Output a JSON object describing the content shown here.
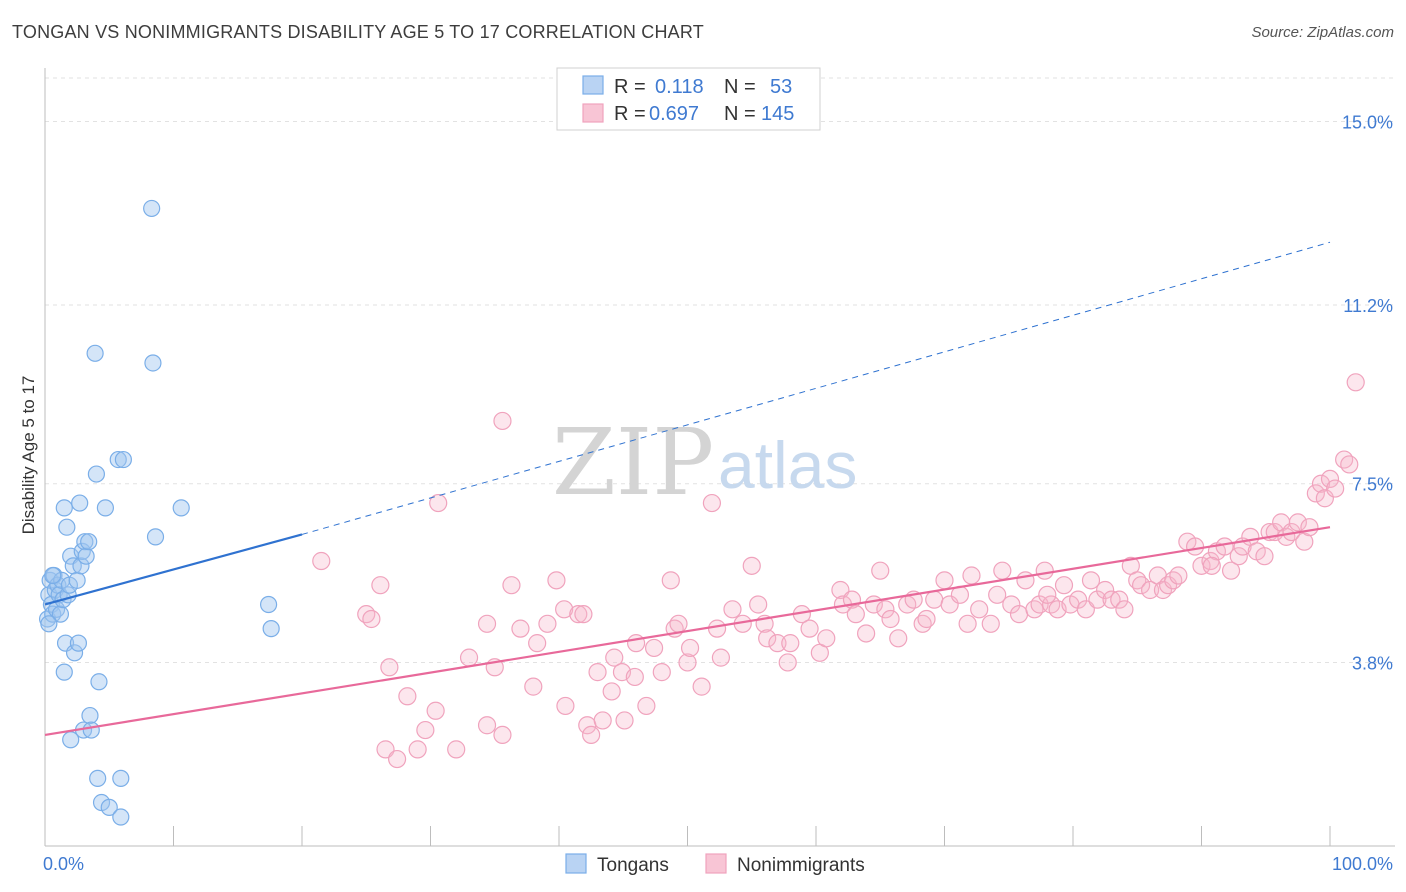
{
  "title": "TONGAN VS NONIMMIGRANTS DISABILITY AGE 5 TO 17 CORRELATION CHART",
  "source": "Source: ZipAtlas.com",
  "watermark": {
    "zip": "ZIP",
    "atlas": "atlas"
  },
  "legend": {
    "rows": [
      {
        "r_label": "R =",
        "r_value": "0.118",
        "n_label": "N =",
        "n_value": "53"
      },
      {
        "r_label": "R =",
        "r_value": "0.697",
        "n_label": "N =",
        "n_value": "145"
      }
    ]
  },
  "colors": {
    "tongans": "#7aaee8",
    "nonimmigrants": "#f0a3bd",
    "tongan_line": "#2f72d0",
    "nonimm_line": "#e8699a",
    "tick_text": "#3f7ad1"
  },
  "chart_data": {
    "type": "scatter",
    "title": "TONGAN VS NONIMMIGRANTS DISABILITY AGE 5 TO 17 CORRELATION CHART",
    "xlabel": "",
    "ylabel": "Disability Age 5 to 17",
    "xlim": [
      0,
      100
    ],
    "ylim": [
      0,
      15.9
    ],
    "x_tick_labels": [
      "0.0%",
      "100.0%"
    ],
    "y_ticks": [
      3.8,
      7.5,
      11.2,
      15.0
    ],
    "y_tick_labels": [
      "3.8%",
      "7.5%",
      "11.2%",
      "15.0%"
    ],
    "grid": true,
    "legend_position": "bottom-center",
    "series": [
      {
        "name": "Tongans",
        "points": [
          [
            0.2,
            4.7
          ],
          [
            0.3,
            5.2
          ],
          [
            0.4,
            5.5
          ],
          [
            0.5,
            5.0
          ],
          [
            0.6,
            4.8
          ],
          [
            0.7,
            5.6
          ],
          [
            0.8,
            5.3
          ],
          [
            0.9,
            4.9
          ],
          [
            1.0,
            5.4
          ],
          [
            1.1,
            5.2
          ],
          [
            1.2,
            4.8
          ],
          [
            1.3,
            5.5
          ],
          [
            1.4,
            5.1
          ],
          [
            1.5,
            3.6
          ],
          [
            1.5,
            7.0
          ],
          [
            1.6,
            4.2
          ],
          [
            1.7,
            6.6
          ],
          [
            1.8,
            5.2
          ],
          [
            1.9,
            5.4
          ],
          [
            2.0,
            6.0
          ],
          [
            2.0,
            2.2
          ],
          [
            2.2,
            5.8
          ],
          [
            2.3,
            4.0
          ],
          [
            2.5,
            5.5
          ],
          [
            2.6,
            4.2
          ],
          [
            2.7,
            7.1
          ],
          [
            2.8,
            5.8
          ],
          [
            2.9,
            6.1
          ],
          [
            3.0,
            2.4
          ],
          [
            3.1,
            6.3
          ],
          [
            3.2,
            6.0
          ],
          [
            3.4,
            6.3
          ],
          [
            3.5,
            2.7
          ],
          [
            3.6,
            2.4
          ],
          [
            3.9,
            10.2
          ],
          [
            4.0,
            7.7
          ],
          [
            4.1,
            1.4
          ],
          [
            4.2,
            3.4
          ],
          [
            4.4,
            0.9
          ],
          [
            4.7,
            7.0
          ],
          [
            5.0,
            0.8
          ],
          [
            5.7,
            8.0
          ],
          [
            5.9,
            0.6
          ],
          [
            5.9,
            1.4
          ],
          [
            6.1,
            8.0
          ],
          [
            8.3,
            13.2
          ],
          [
            8.4,
            10.0
          ],
          [
            8.6,
            6.4
          ],
          [
            10.6,
            7.0
          ],
          [
            17.4,
            5.0
          ],
          [
            17.6,
            4.5
          ],
          [
            0.3,
            4.6
          ],
          [
            0.6,
            5.6
          ]
        ]
      },
      {
        "name": "Nonimmigrants",
        "points": [
          [
            21.5,
            5.9
          ],
          [
            25.0,
            4.8
          ],
          [
            25.4,
            4.7
          ],
          [
            26.1,
            5.4
          ],
          [
            26.5,
            2.0
          ],
          [
            26.8,
            3.7
          ],
          [
            27.4,
            1.8
          ],
          [
            28.2,
            3.1
          ],
          [
            29.0,
            2.0
          ],
          [
            29.6,
            2.4
          ],
          [
            30.4,
            2.8
          ],
          [
            30.6,
            7.1
          ],
          [
            32.0,
            2.0
          ],
          [
            33.0,
            3.9
          ],
          [
            34.4,
            4.6
          ],
          [
            34.4,
            2.5
          ],
          [
            35.0,
            3.7
          ],
          [
            35.6,
            2.3
          ],
          [
            35.6,
            8.8
          ],
          [
            36.3,
            5.4
          ],
          [
            37.0,
            4.5
          ],
          [
            38.0,
            3.3
          ],
          [
            38.3,
            4.2
          ],
          [
            39.1,
            4.6
          ],
          [
            39.8,
            5.5
          ],
          [
            40.4,
            4.9
          ],
          [
            40.5,
            2.9
          ],
          [
            41.5,
            4.8
          ],
          [
            41.9,
            4.8
          ],
          [
            42.2,
            2.5
          ],
          [
            42.5,
            2.3
          ],
          [
            43.0,
            3.6
          ],
          [
            43.4,
            2.6
          ],
          [
            44.1,
            3.2
          ],
          [
            44.3,
            3.9
          ],
          [
            44.9,
            3.6
          ],
          [
            45.1,
            2.6
          ],
          [
            45.9,
            3.5
          ],
          [
            46.0,
            4.2
          ],
          [
            46.8,
            2.9
          ],
          [
            47.4,
            4.1
          ],
          [
            48.0,
            3.6
          ],
          [
            48.7,
            5.5
          ],
          [
            49.0,
            4.5
          ],
          [
            49.3,
            4.6
          ],
          [
            50.0,
            3.8
          ],
          [
            50.2,
            4.1
          ],
          [
            51.1,
            3.3
          ],
          [
            51.9,
            7.1
          ],
          [
            52.3,
            4.5
          ],
          [
            52.6,
            3.9
          ],
          [
            53.5,
            4.9
          ],
          [
            54.3,
            4.6
          ],
          [
            55.0,
            5.8
          ],
          [
            55.5,
            5.0
          ],
          [
            56.0,
            4.6
          ],
          [
            56.2,
            4.3
          ],
          [
            57.0,
            4.2
          ],
          [
            57.8,
            3.8
          ],
          [
            58.0,
            4.2
          ],
          [
            58.9,
            4.8
          ],
          [
            59.5,
            4.5
          ],
          [
            60.3,
            4.0
          ],
          [
            60.8,
            4.3
          ],
          [
            61.9,
            5.3
          ],
          [
            62.1,
            5.0
          ],
          [
            62.8,
            5.1
          ],
          [
            63.1,
            4.8
          ],
          [
            63.9,
            4.4
          ],
          [
            64.5,
            5.0
          ],
          [
            65.4,
            4.9
          ],
          [
            65.8,
            4.7
          ],
          [
            66.4,
            4.3
          ],
          [
            67.1,
            5.0
          ],
          [
            67.6,
            5.1
          ],
          [
            68.3,
            4.6
          ],
          [
            68.6,
            4.7
          ],
          [
            69.2,
            5.1
          ],
          [
            70.0,
            5.5
          ],
          [
            70.4,
            5.0
          ],
          [
            71.2,
            5.2
          ],
          [
            71.8,
            4.6
          ],
          [
            72.1,
            5.6
          ],
          [
            72.7,
            4.9
          ],
          [
            73.6,
            4.6
          ],
          [
            74.1,
            5.2
          ],
          [
            74.5,
            5.7
          ],
          [
            75.2,
            5.0
          ],
          [
            75.8,
            4.8
          ],
          [
            76.3,
            5.5
          ],
          [
            77.0,
            4.9
          ],
          [
            77.4,
            5.0
          ],
          [
            77.8,
            5.7
          ],
          [
            78.3,
            5.0
          ],
          [
            78.8,
            4.9
          ],
          [
            79.3,
            5.4
          ],
          [
            79.8,
            5.0
          ],
          [
            80.4,
            5.1
          ],
          [
            81.0,
            4.9
          ],
          [
            81.4,
            5.5
          ],
          [
            81.9,
            5.1
          ],
          [
            82.5,
            5.3
          ],
          [
            83.0,
            5.1
          ],
          [
            83.6,
            5.1
          ],
          [
            84.0,
            4.9
          ],
          [
            84.5,
            5.8
          ],
          [
            85.0,
            5.5
          ],
          [
            85.3,
            5.4
          ],
          [
            86.0,
            5.3
          ],
          [
            86.6,
            5.6
          ],
          [
            87.0,
            5.3
          ],
          [
            87.4,
            5.4
          ],
          [
            87.8,
            5.5
          ],
          [
            88.2,
            5.6
          ],
          [
            88.9,
            6.3
          ],
          [
            89.5,
            6.2
          ],
          [
            90.0,
            5.8
          ],
          [
            90.7,
            5.9
          ],
          [
            91.2,
            6.1
          ],
          [
            91.8,
            6.2
          ],
          [
            92.3,
            5.7
          ],
          [
            92.9,
            6.0
          ],
          [
            93.2,
            6.2
          ],
          [
            93.8,
            6.4
          ],
          [
            94.3,
            6.1
          ],
          [
            94.9,
            6.0
          ],
          [
            95.3,
            6.5
          ],
          [
            95.7,
            6.5
          ],
          [
            96.2,
            6.7
          ],
          [
            96.6,
            6.4
          ],
          [
            97.0,
            6.5
          ],
          [
            97.5,
            6.7
          ],
          [
            98.0,
            6.3
          ],
          [
            98.4,
            6.6
          ],
          [
            98.9,
            7.3
          ],
          [
            99.3,
            7.5
          ],
          [
            99.6,
            7.2
          ],
          [
            100.0,
            7.6
          ],
          [
            100.4,
            7.4
          ],
          [
            101.1,
            8.0
          ],
          [
            101.5,
            7.9
          ],
          [
            102.0,
            9.6
          ],
          [
            90.8,
            5.8
          ],
          [
            78.0,
            5.2
          ],
          [
            65.0,
            5.7
          ]
        ]
      }
    ],
    "trend_lines": [
      {
        "series": "Tongans",
        "solid": [
          [
            0.0,
            5.0
          ],
          [
            20.0,
            6.45
          ]
        ],
        "dashed": [
          [
            20.0,
            6.45
          ],
          [
            100.0,
            12.5
          ]
        ]
      },
      {
        "series": "Nonimmigrants",
        "solid": [
          [
            0.0,
            2.3
          ],
          [
            100.0,
            6.6
          ]
        ]
      }
    ]
  }
}
